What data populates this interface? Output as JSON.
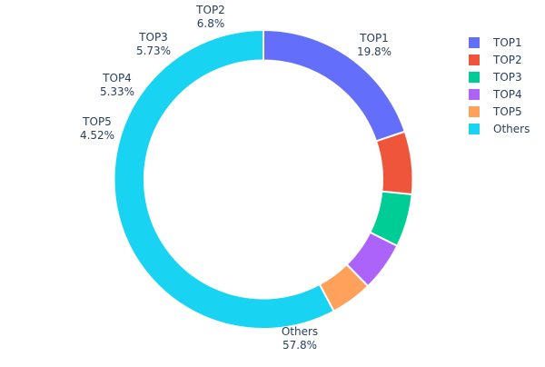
{
  "chart_data": {
    "type": "pie",
    "hole": true,
    "direction": "clockwise",
    "labels": [
      "TOP1",
      "TOP2",
      "TOP3",
      "TOP4",
      "TOP5",
      "Others"
    ],
    "values": [
      19.8,
      6.8,
      5.73,
      5.33,
      4.52,
      57.8
    ],
    "value_labels": [
      "19.8%",
      "6.8%",
      "5.73%",
      "5.33%",
      "4.52%",
      "57.8%"
    ],
    "colors": [
      "#636efa",
      "#EF553B",
      "#00cc96",
      "#ab63fa",
      "#FFA15A",
      "#19d3f3"
    ],
    "legend_placement": "top-right"
  }
}
